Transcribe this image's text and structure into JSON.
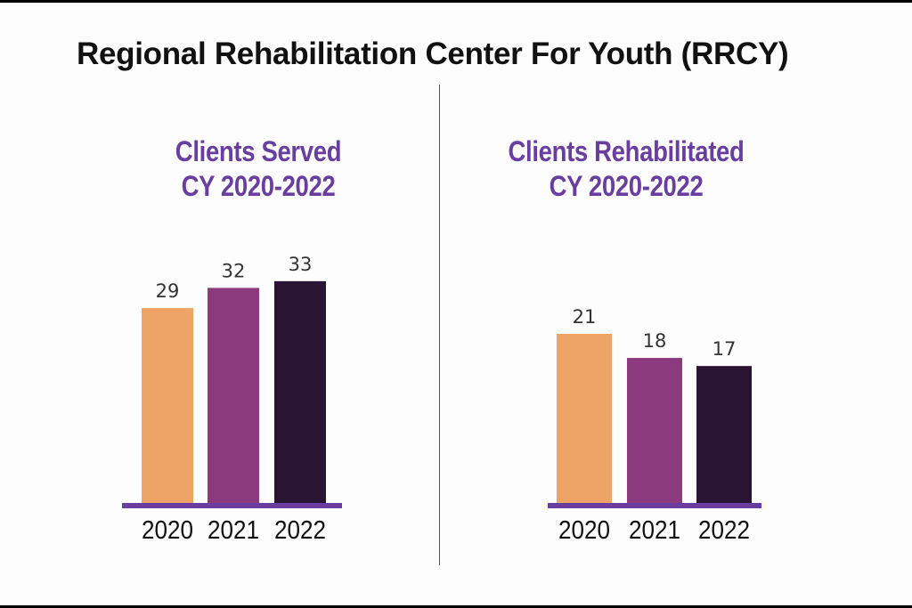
{
  "title": "Regional Rehabilitation Center For Youth (RRCY)",
  "colors": {
    "title": "#111111",
    "chart_title": "#6a3ea1",
    "baseline": "#6a3ea1",
    "bar_2020": "#eea466",
    "bar_2021": "#8b3a7e",
    "bar_2022": "#2a1433"
  },
  "chart_data": [
    {
      "type": "bar",
      "title": [
        "Clients Served",
        "CY 2020-2022"
      ],
      "categories": [
        "2020",
        "2021",
        "2022"
      ],
      "values": [
        29,
        32,
        33
      ],
      "data_labels": [
        "29",
        "32",
        "33"
      ],
      "ylim": [
        0,
        40
      ],
      "grid": false,
      "legend": "none"
    },
    {
      "type": "bar",
      "title": [
        "Clients Rehabilitated",
        "CY 2020-2022"
      ],
      "categories": [
        "2020",
        "2021",
        "2022"
      ],
      "values": [
        21,
        18,
        17
      ],
      "data_labels": [
        "21",
        "18",
        "17"
      ],
      "ylim": [
        0,
        40
      ],
      "grid": false,
      "legend": "none"
    }
  ]
}
